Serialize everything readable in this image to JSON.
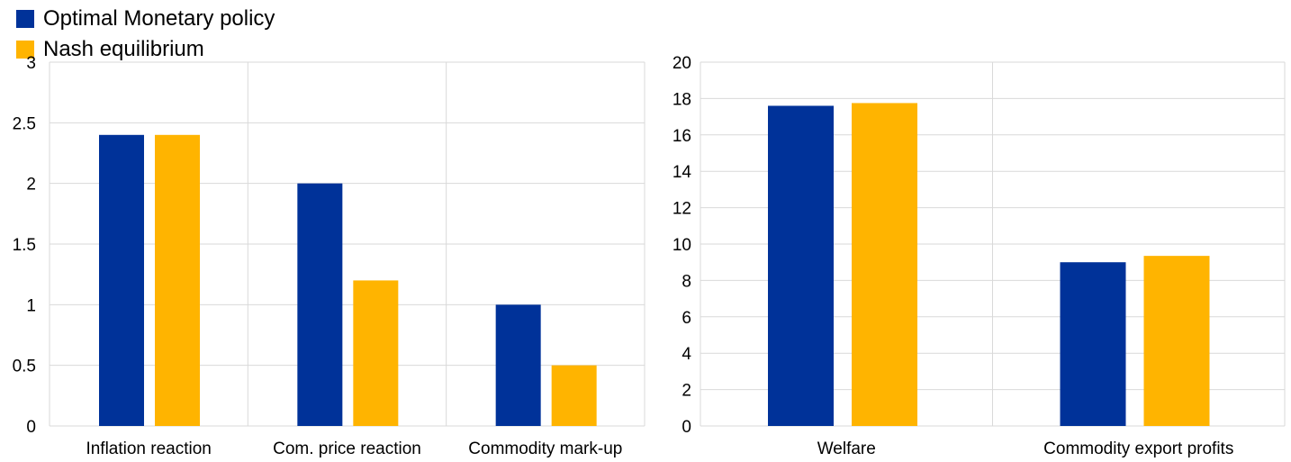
{
  "colors": {
    "optimal": "#003299",
    "nash": "#FFB400",
    "grid": "#d9d9d9"
  },
  "legend": [
    {
      "label": "Optimal Monetary policy",
      "color": "#003299"
    },
    {
      "label": "Nash equilibrium",
      "color": "#FFB400"
    }
  ],
  "chart_data": [
    {
      "type": "bar",
      "categories": [
        "Inflation reaction",
        "Com. price reaction",
        "Commodity mark-up"
      ],
      "series": [
        {
          "name": "Optimal Monetary policy",
          "values": [
            2.4,
            2.0,
            1.0
          ]
        },
        {
          "name": "Nash equilibrium",
          "values": [
            2.4,
            1.2,
            0.5
          ]
        }
      ],
      "ylim": [
        0,
        3
      ],
      "yticks": [
        "0",
        "0.5",
        "1",
        "1.5",
        "2",
        "2.5",
        "3"
      ],
      "grid": true,
      "legend_position": "top-left"
    },
    {
      "type": "bar",
      "categories": [
        "Welfare",
        "Commodity export profits"
      ],
      "series": [
        {
          "name": "Optimal Monetary policy",
          "values": [
            17.6,
            9.0
          ]
        },
        {
          "name": "Nash equilibrium",
          "values": [
            17.75,
            9.35
          ]
        }
      ],
      "ylim": [
        0,
        20
      ],
      "yticks": [
        "0",
        "2",
        "4",
        "6",
        "8",
        "10",
        "12",
        "14",
        "16",
        "18",
        "20"
      ],
      "grid": true
    }
  ]
}
